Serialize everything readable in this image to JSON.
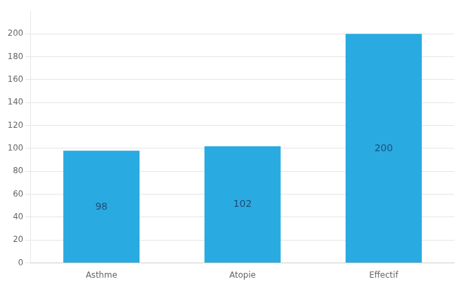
{
  "chart_data": {
    "type": "bar",
    "categories": [
      "Asthme",
      "Atopie",
      "Effectif"
    ],
    "values": [
      98,
      102,
      200
    ],
    "color": "#29AAE1",
    "ylim": [
      0,
      220
    ],
    "yticks": [
      0,
      20,
      40,
      60,
      80,
      100,
      120,
      140,
      160,
      180,
      200
    ],
    "grid": true,
    "data_labels": true
  }
}
